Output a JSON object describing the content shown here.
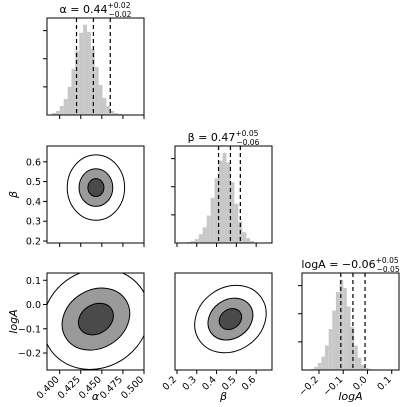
{
  "chart_data": {
    "type": "corner",
    "parameters": [
      {
        "name": "α",
        "axis_label": "α",
        "title": "α = 0.44",
        "title_sup": "+0.02",
        "title_sub": "−0.02",
        "range": [
          0.385,
          0.5
        ],
        "ticks": [
          0.4,
          0.425,
          0.45,
          0.475,
          0.5
        ],
        "tick_labels": [
          "0.400",
          "0.425",
          "0.450",
          "0.475",
          "0.500"
        ],
        "quantiles": [
          0.42,
          0.44,
          0.46
        ],
        "histogram": {
          "bin_start": 0.391,
          "bin_width": 0.0046,
          "counts": [
            2,
            4,
            9,
            16,
            28,
            46,
            64,
            82,
            90,
            83,
            66,
            48,
            30,
            17,
            9,
            4,
            2,
            1
          ]
        }
      },
      {
        "name": "β",
        "axis_label": "β",
        "title": "β = 0.47",
        "title_sup": "+0.05",
        "title_sub": "−0.06",
        "range": [
          0.19,
          0.68
        ],
        "ticks": [
          0.2,
          0.3,
          0.4,
          0.5,
          0.6
        ],
        "tick_labels": [
          "0.2",
          "0.3",
          "0.4",
          "0.5",
          "0.6"
        ],
        "quantiles": [
          0.41,
          0.47,
          0.52
        ],
        "histogram": {
          "bin_start": 0.25,
          "bin_width": 0.02,
          "counts": [
            1,
            2,
            4,
            9,
            16,
            28,
            46,
            66,
            84,
            92,
            82,
            62,
            40,
            22,
            11,
            5,
            2
          ]
        }
      },
      {
        "name": "logA",
        "axis_label": "logA",
        "title": "logA = −0.06",
        "title_sup": "+0.05",
        "title_sub": "−0.05",
        "range": [
          -0.27,
          0.13
        ],
        "ticks": [
          -0.2,
          -0.1,
          0.0,
          0.1
        ],
        "tick_labels": [
          "−0.2",
          "−0.1",
          "0.0",
          "0.1"
        ],
        "quantiles": [
          -0.11,
          -0.06,
          -0.01
        ],
        "histogram": {
          "bin_start": -0.235,
          "bin_width": 0.015,
          "counts": [
            1,
            3,
            7,
            13,
            24,
            40,
            58,
            76,
            88,
            80,
            62,
            42,
            24,
            12,
            5,
            2,
            1
          ]
        }
      }
    ],
    "pairs": [
      {
        "x": "α",
        "y": "β",
        "center": [
          0.443,
          0.47
        ],
        "contours": [
          {
            "level": "inner",
            "color": "#4a4a4a",
            "semi_x": 0.0095,
            "semi_y": 0.045,
            "rotation_deg": 0
          },
          {
            "level": "middle",
            "color": "#9a9a9a",
            "semi_x": 0.02,
            "semi_y": 0.095,
            "rotation_deg": 0
          },
          {
            "level": "outer",
            "color": "#ffffff",
            "semi_x": 0.034,
            "semi_y": 0.165,
            "rotation_deg": 0
          }
        ]
      },
      {
        "x": "α",
        "y": "logA",
        "center": [
          0.443,
          -0.06
        ],
        "contours": [
          {
            "level": "inner",
            "color": "#4a4a4a",
            "semi_x": 0.022,
            "semi_y": 0.06,
            "rotation_deg": -32
          },
          {
            "level": "middle",
            "color": "#9a9a9a",
            "semi_x": 0.042,
            "semi_y": 0.12,
            "rotation_deg": -32
          },
          {
            "level": "outer",
            "color": "#ffffff",
            "semi_x": 0.065,
            "semi_y": 0.2,
            "rotation_deg": -32
          }
        ]
      },
      {
        "x": "β",
        "y": "logA",
        "center": [
          0.47,
          -0.06
        ],
        "contours": [
          {
            "level": "inner",
            "color": "#4a4a4a",
            "semi_x": 0.06,
            "semi_y": 0.04,
            "rotation_deg": -35
          },
          {
            "level": "middle",
            "color": "#9a9a9a",
            "semi_x": 0.12,
            "semi_y": 0.08,
            "rotation_deg": -35
          },
          {
            "level": "outer",
            "color": "#ffffff",
            "semi_x": 0.19,
            "semi_y": 0.13,
            "rotation_deg": -35
          }
        ]
      }
    ],
    "colors": {
      "histogram": "#c8c8c8",
      "quantile_line": "#000000",
      "axis": "#000000"
    }
  }
}
